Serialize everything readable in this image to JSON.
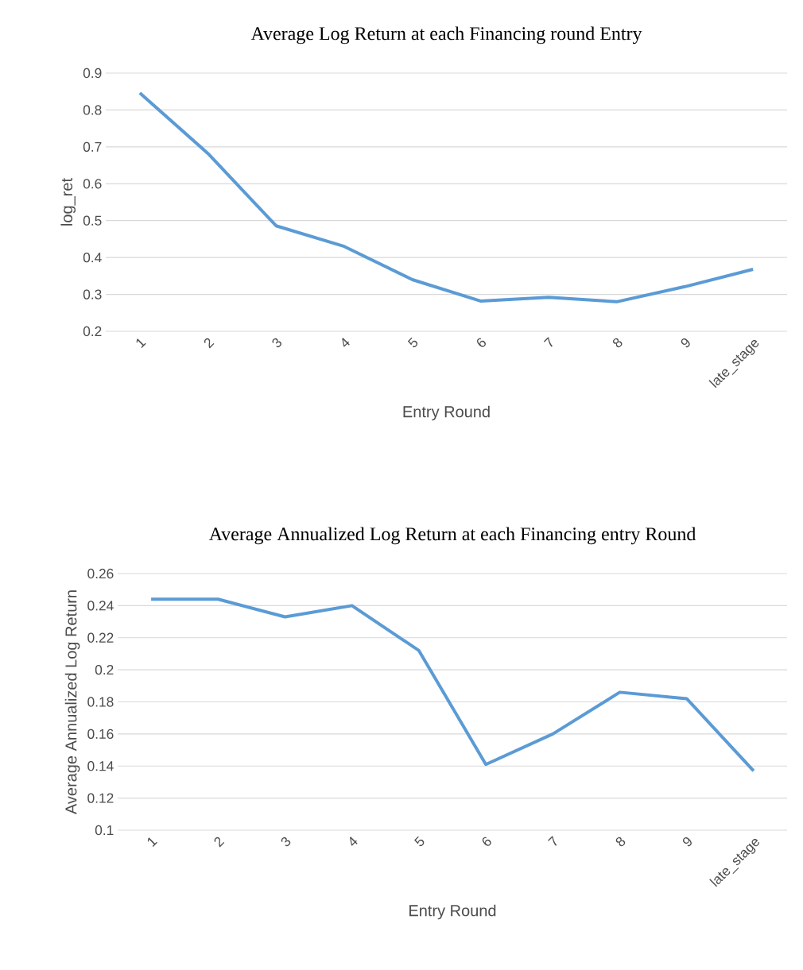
{
  "chart_data": [
    {
      "type": "line",
      "title": "Average Log Return at each Financing round Entry",
      "xlabel": "Entry Round",
      "ylabel": "log_ret",
      "categories": [
        "1",
        "2",
        "3",
        "4",
        "5",
        "6",
        "7",
        "8",
        "9",
        "late_stage"
      ],
      "series": [
        {
          "color": "#5b9bd5",
          "values": [
            0.846,
            0.682,
            0.486,
            0.43,
            0.34,
            0.282,
            0.292,
            0.28,
            0.321,
            0.368
          ]
        }
      ],
      "ylim": [
        0.2,
        0.9
      ],
      "yticks": [
        0.2,
        0.3,
        0.4,
        0.5,
        0.6,
        0.7,
        0.8,
        0.9
      ],
      "grid": "y",
      "marker": "none"
    },
    {
      "type": "line",
      "title": "Average Annualized Log Return at each Financing entry Round",
      "xlabel": "Entry Round",
      "ylabel": "Average Annualized Log Return",
      "categories": [
        "1",
        "2",
        "3",
        "4",
        "5",
        "6",
        "7",
        "8",
        "9",
        "late_stage"
      ],
      "series": [
        {
          "color": "#5b9bd5",
          "values": [
            0.244,
            0.244,
            0.233,
            0.24,
            0.212,
            0.141,
            0.16,
            0.186,
            0.182,
            0.137
          ]
        }
      ],
      "ylim": [
        0.1,
        0.26
      ],
      "yticks": [
        0.1,
        0.12,
        0.14,
        0.16,
        0.18,
        0.2,
        0.22,
        0.24,
        0.26
      ],
      "grid": "y",
      "marker": "none"
    }
  ]
}
